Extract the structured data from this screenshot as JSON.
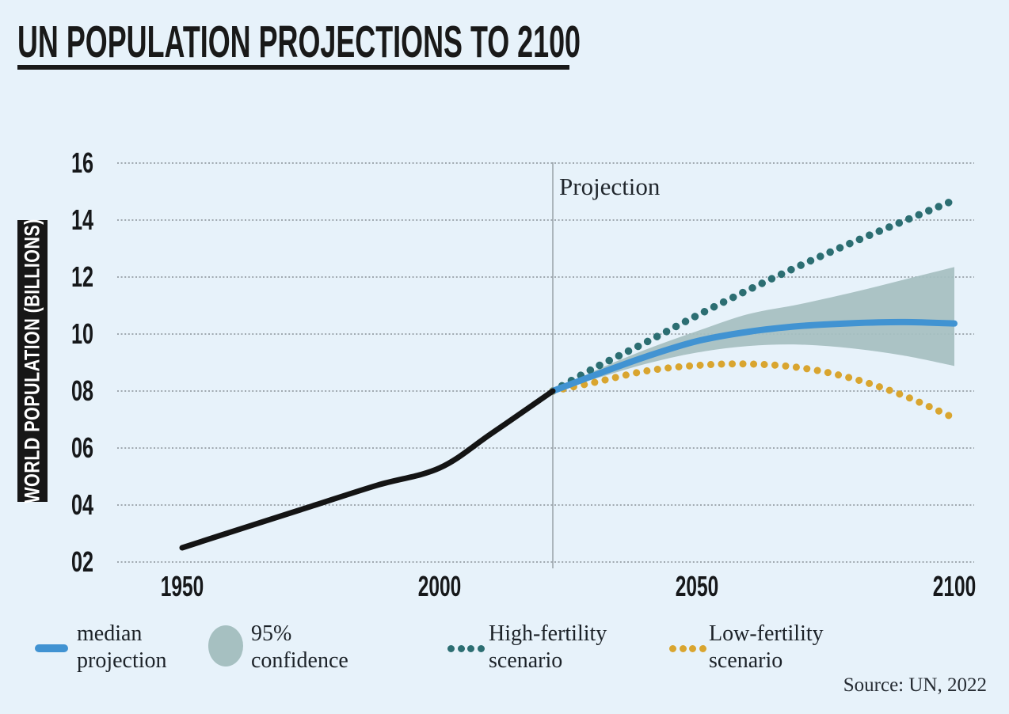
{
  "title": "UN POPULATION PROJECTIONS TO 2100",
  "y_axis_label": "WORLD POPULATION (BILLIONS)",
  "projection_label": "Projection",
  "source": "Source: UN, 2022",
  "colors": {
    "background": "#e7f2fa",
    "title": "#191919",
    "historical_line": "#141414",
    "median_line": "#4193d2",
    "high_fertility": "#2c6e72",
    "low_fertility": "#d9a52f",
    "confidence_band": "#a6c0c1",
    "gridline": "#a0a9b0",
    "projection_divider": "#99a1a8"
  },
  "legend": [
    {
      "label_line1": "median",
      "label_line2": "projection",
      "swatch": "line",
      "color": "#4193d2"
    },
    {
      "label_line1": "95%",
      "label_line2": "confidence",
      "swatch": "circle",
      "color": "#a6c0c1"
    },
    {
      "label_line1": "High-fertility",
      "label_line2": "scenario",
      "swatch": "dots",
      "color": "#2c6e72"
    },
    {
      "label_line1": "Low-fertility",
      "label_line2": "scenario",
      "swatch": "dots",
      "color": "#d9a52f"
    }
  ],
  "chart_data": {
    "type": "line",
    "title": "UN POPULATION PROJECTIONS TO 2100",
    "xlabel": "",
    "ylabel": "WORLD POPULATION (BILLIONS)",
    "xlim": [
      1950,
      2100
    ],
    "ylim": [
      2,
      16
    ],
    "grid": "horizontal-dotted",
    "legend_position": "bottom",
    "projection_start_year": 2022,
    "x_ticks": [
      {
        "year": 1950,
        "label": "1950"
      },
      {
        "year": 2000,
        "label": "2000"
      },
      {
        "year": 2050,
        "label": "2050"
      },
      {
        "year": 2100,
        "label": "2100"
      }
    ],
    "y_ticks": [
      {
        "value": 2,
        "label": "02"
      },
      {
        "value": 4,
        "label": "04"
      },
      {
        "value": 6,
        "label": "06"
      },
      {
        "value": 8,
        "label": "08"
      },
      {
        "value": 10,
        "label": "10"
      },
      {
        "value": 12,
        "label": "12"
      },
      {
        "value": 14,
        "label": "14"
      },
      {
        "value": 16,
        "label": "16"
      }
    ],
    "series": [
      {
        "name": "historical population",
        "style": "solid",
        "color": "#141414",
        "width": 7,
        "points": [
          [
            1950,
            2.5
          ],
          [
            1962,
            3.2
          ],
          [
            1975,
            3.95
          ],
          [
            1988,
            4.7
          ],
          [
            2000,
            5.3
          ],
          [
            2010,
            6.5
          ],
          [
            2022,
            8.0
          ]
        ]
      },
      {
        "name": "median projection",
        "style": "solid",
        "color": "#4193d2",
        "width": 8,
        "points": [
          [
            2022,
            8.0
          ],
          [
            2030,
            8.55
          ],
          [
            2040,
            9.2
          ],
          [
            2050,
            9.75
          ],
          [
            2060,
            10.08
          ],
          [
            2070,
            10.28
          ],
          [
            2080,
            10.38
          ],
          [
            2090,
            10.42
          ],
          [
            2100,
            10.37
          ]
        ]
      },
      {
        "name": "95% confidence",
        "style": "band",
        "color": "#a6c0c1",
        "upper": [
          [
            2027,
            8.4
          ],
          [
            2030,
            8.7
          ],
          [
            2040,
            9.45
          ],
          [
            2050,
            10.1
          ],
          [
            2060,
            10.7
          ],
          [
            2070,
            11.05
          ],
          [
            2080,
            11.45
          ],
          [
            2090,
            11.9
          ],
          [
            2100,
            12.35
          ]
        ],
        "lower": [
          [
            2027,
            8.3
          ],
          [
            2030,
            8.42
          ],
          [
            2040,
            8.95
          ],
          [
            2050,
            9.35
          ],
          [
            2060,
            9.58
          ],
          [
            2070,
            9.63
          ],
          [
            2080,
            9.5
          ],
          [
            2090,
            9.25
          ],
          [
            2100,
            8.88
          ]
        ]
      },
      {
        "name": "High-fertility scenario",
        "style": "dotted",
        "color": "#2c6e72",
        "width": 9.5,
        "points": [
          [
            2022,
            8.0
          ],
          [
            2030,
            8.8
          ],
          [
            2040,
            9.7
          ],
          [
            2050,
            10.65
          ],
          [
            2060,
            11.55
          ],
          [
            2070,
            12.4
          ],
          [
            2080,
            13.2
          ],
          [
            2090,
            13.95
          ],
          [
            2100,
            14.7
          ]
        ]
      },
      {
        "name": "Low-fertility scenario",
        "style": "dotted",
        "color": "#d9a52f",
        "width": 9,
        "points": [
          [
            2022,
            8.0
          ],
          [
            2030,
            8.3
          ],
          [
            2040,
            8.7
          ],
          [
            2050,
            8.9
          ],
          [
            2060,
            8.95
          ],
          [
            2070,
            8.82
          ],
          [
            2080,
            8.45
          ],
          [
            2090,
            7.85
          ],
          [
            2100,
            7.05
          ]
        ]
      }
    ]
  }
}
